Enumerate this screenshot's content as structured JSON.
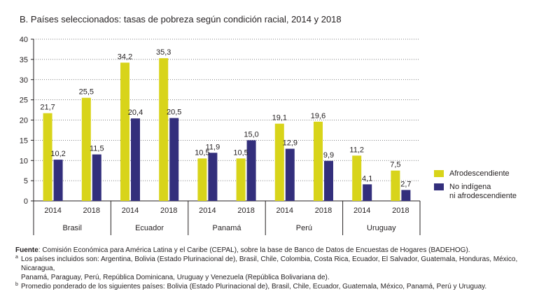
{
  "title": "B. Países seleccionados: tasas de pobreza según condición racial, 2014 y 2018",
  "colors": {
    "afro": "#d8d41a",
    "no_indigena": "#332f7c",
    "axis": "#231f20",
    "grid": "#58595b"
  },
  "chart_data": {
    "type": "bar",
    "title": "B. Países seleccionados: tasas de pobreza según condición racial, 2014 y 2018",
    "xlabel": "",
    "ylabel": "",
    "ylim": [
      0,
      40
    ],
    "yticks": [
      0,
      5,
      10,
      15,
      20,
      25,
      30,
      35,
      40
    ],
    "legend_position": "right",
    "groups": [
      {
        "name": "Brasil",
        "years": [
          "2014",
          "2018"
        ]
      },
      {
        "name": "Ecuador",
        "years": [
          "2014",
          "2018"
        ]
      },
      {
        "name": "Panamá",
        "years": [
          "2014",
          "2018"
        ]
      },
      {
        "name": "Perú",
        "years": [
          "2014",
          "2018"
        ]
      },
      {
        "name": "Uruguay",
        "years": [
          "2014",
          "2018"
        ]
      }
    ],
    "categories": [
      "Brasil 2014",
      "Brasil 2018",
      "Ecuador 2014",
      "Ecuador 2018",
      "Panamá 2014",
      "Panamá 2018",
      "Perú 2014",
      "Perú 2018",
      "Uruguay 2014",
      "Uruguay 2018"
    ],
    "series": [
      {
        "name": "Afrodescendiente",
        "color": "#d8d41a",
        "values": [
          21.7,
          25.5,
          34.2,
          35.3,
          10.5,
          10.5,
          19.1,
          19.6,
          11.2,
          7.5
        ],
        "labels": [
          "21,7",
          "25,5",
          "34,2",
          "35,3",
          "10,5",
          "10,5",
          "19,1",
          "19,6",
          "11,2",
          "7,5"
        ]
      },
      {
        "name": "No indígena ni afrodescendiente",
        "color": "#332f7c",
        "values": [
          10.2,
          11.5,
          20.4,
          20.5,
          11.9,
          15.0,
          12.9,
          9.9,
          4.1,
          2.7
        ],
        "labels": [
          "10,2",
          "11,5",
          "20,4",
          "20,5",
          "11,9",
          "15,0",
          "12,9",
          "9,9",
          "4,1",
          "2,7"
        ]
      }
    ]
  },
  "legend": {
    "items": [
      {
        "line1": "Afrodescendiente",
        "line2": ""
      },
      {
        "line1": "No indígena",
        "line2": "ni afrodescendiente"
      }
    ]
  },
  "notes": {
    "source_label": "Fuente",
    "source_text": ": Comisión Económica para América Latina y el Caribe (CEPAL), sobre la base de Banco de Datos de Encuestas de Hogares (BADEHOG).",
    "a_mark": "a",
    "a_line1": "Los países incluidos son: Argentina, Bolivia (Estado Plurinacional de), Brasil, Chile, Colombia, Costa Rica, Ecuador, El Salvador, Guatemala, Honduras, México, Nicaragua,",
    "a_line2": "Panamá, Paraguay, Perú, República Dominicana, Uruguay y Venezuela (República Bolivariana de).",
    "b_mark": "b",
    "b_text": "Promedio ponderado de los siguientes países: Bolivia (Estado Plurinacional de), Brasil, Chile, Ecuador, Guatemala, México, Panamá, Perú y Uruguay."
  }
}
